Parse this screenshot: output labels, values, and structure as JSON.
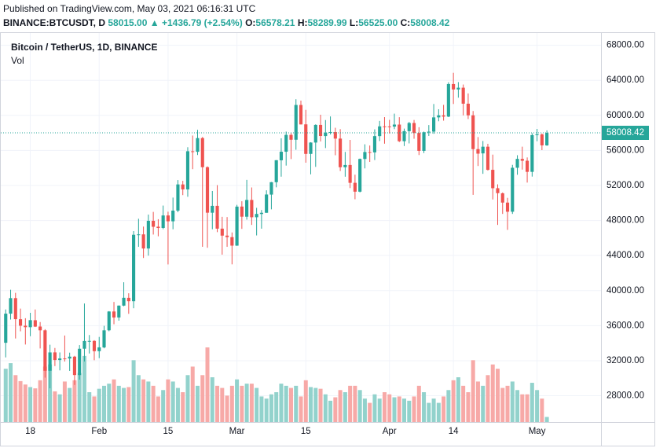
{
  "header": {
    "published": "Published on TradingView.com, May 03, 2021 06:16:31 UTC",
    "symbol": "BINANCE:BTCUSDT, D",
    "price": "58015.00",
    "change": "▲ +1436.79 (+2.54%)",
    "open_label": "O:",
    "open": "56578.21",
    "high_label": "H:",
    "high": "58289.99",
    "low_label": "L:",
    "low": "56525.00",
    "close_label": "C:",
    "close": "58008.42"
  },
  "chart_data": {
    "type": "candlestick",
    "title": "Bitcoin / TetherUS, 1D, BINANCE",
    "volume_label": "Vol",
    "up_color": "#26a69a",
    "down_color": "#ef5350",
    "volume_up_color": "#92d2cc",
    "volume_down_color": "#f7a9a7",
    "open": [
      34049,
      37371,
      39145,
      36737,
      35994,
      35824,
      36622,
      35901,
      35468,
      30852,
      32950,
      32078,
      32259,
      32251,
      32465,
      30362,
      33368,
      34246,
      34262,
      33092,
      33517,
      35472,
      37620,
      36936,
      38289,
      39181,
      38795,
      46374,
      46420,
      44807,
      47969,
      47298,
      47156,
      48580,
      47911,
      49133,
      52117,
      51552,
      55906,
      55841,
      57412,
      54088,
      48891,
      49677,
      47074,
      46277,
      46104,
      45134,
      49595,
      48436,
      50349,
      48374,
      48746,
      48882,
      50959,
      52376,
      54874,
      55851,
      57773,
      57222,
      61188,
      58976,
      55605,
      56900,
      58912,
      57641,
      58030,
      58100,
      57351,
      54083,
      54342,
      52304,
      51293,
      55026,
      55817,
      55777,
      57635,
      58746,
      58739,
      58720,
      58950,
      57052,
      58202,
      59130,
      57990,
      55953,
      58077,
      58142,
      59770,
      60007,
      59861,
      63576,
      62959,
      63159,
      61334,
      60006,
      56150,
      55663,
      56425,
      53787,
      51690,
      51110,
      50047,
      49004,
      54022,
      55033,
      54825,
      53555,
      57750,
      57828,
      56578.21
    ],
    "high": [
      37850,
      40100,
      39747,
      37950,
      36852,
      37469,
      37850,
      36415,
      35600,
      33826,
      33456,
      32944,
      34875,
      32921,
      32557,
      33783,
      38531,
      34933,
      34342,
      34717,
      35984,
      37662,
      38708,
      38310,
      40955,
      39700,
      46794,
      48200,
      47310,
      48678,
      48985,
      48150,
      49707,
      49010,
      50620,
      52618,
      52530,
      56368,
      57700,
      58352,
      57534,
      54183,
      51374,
      52041,
      48424,
      48395,
      46638,
      49790,
      50200,
      52640,
      51773,
      49448,
      49200,
      51450,
      52402,
      54895,
      57387,
      58150,
      58058,
      61844,
      61683,
      60633,
      56938,
      58980,
      60074,
      59468,
      59880,
      58589,
      58430,
      55830,
      57200,
      53230,
      55073,
      56700,
      56559,
      58405,
      59368,
      59800,
      59490,
      60200,
      59791,
      58492,
      59251,
      59475,
      58650,
      58153,
      58894,
      61300,
      60699,
      61200,
      63777,
      64854,
      63800,
      63520,
      62506,
      60499,
      57526,
      57076,
      56757,
      55521,
      52130,
      51200,
      50591,
      54356,
      55451,
      56428,
      55200,
      57963,
      58458,
      57941,
      58289.99
    ],
    "low": [
      32380,
      36701,
      34538,
      35357,
      33850,
      34800,
      35844,
      33400,
      30071,
      28850,
      31390,
      30900,
      31910,
      30837,
      29241,
      29842,
      31916,
      32825,
      32056,
      32296,
      33418,
      35362,
      36161,
      36570,
      38215,
      37351,
      37988,
      45000,
      43727,
      43994,
      46400,
      46202,
      47014,
      42989,
      47003,
      48947,
      50901,
      50710,
      53863,
      55477,
      45000,
      44892,
      47003,
      46674,
      44106,
      45000,
      43000,
      45115,
      47047,
      48100,
      47500,
      46300,
      47070,
      48882,
      49274,
      51789,
      53005,
      54270,
      55013,
      56078,
      58964,
      54600,
      53271,
      54123,
      57023,
      56270,
      57820,
      55450,
      53650,
      53000,
      51700,
      50427,
      51214,
      53950,
      54691,
      54901,
      57072,
      56769,
      57935,
      58428,
      56958,
      56500,
      56800,
      57333,
      55473,
      55700,
      57654,
      57900,
      59330,
      59400,
      59800,
      61301,
      62020,
      60000,
      59580,
      50931,
      54221,
      53329,
      53696,
      50400,
      47500,
      48753,
      46930,
      48753,
      53222,
      53813,
      52330,
      53013,
      57052,
      56035,
      56525
    ],
    "close": [
      37371,
      39144,
      36742,
      35994,
      35828,
      36631,
      35891,
      35468,
      30850,
      32945,
      32078,
      32259,
      32254,
      32467,
      30366,
      33364,
      34252,
      34262,
      33092,
      33526,
      35466,
      37618,
      36936,
      38290,
      39186,
      38795,
      46374,
      46420,
      44807,
      47969,
      47287,
      47153,
      48577,
      47911,
      49133,
      52119,
      51552,
      55907,
      55842,
      57408,
      54088,
      48892,
      49676,
      47073,
      46276,
      46106,
      45135,
      49587,
      48440,
      50349,
      48374,
      48751,
      48882,
      50971,
      52375,
      54884,
      55851,
      57773,
      57221,
      61188,
      58968,
      55605,
      56900,
      58912,
      57648,
      58030,
      58102,
      57351,
      54083,
      54340,
      52303,
      51293,
      55025,
      55818,
      55777,
      57635,
      58746,
      58740,
      58720,
      58950,
      57051,
      58202,
      59130,
      57991,
      55953,
      58077,
      58142,
      59769,
      60007,
      59860,
      63575,
      62959,
      63159,
      61334,
      60006,
      56150,
      55633,
      56425,
      53787,
      51690,
      51125,
      50047,
      49004,
      54021,
      55033,
      54824,
      53555,
      57750,
      57828,
      56578,
      58008.42
    ],
    "volume": [
      125000,
      138000,
      110000,
      96000,
      88000,
      82000,
      79000,
      98000,
      130000,
      135000,
      72000,
      65000,
      95000,
      80000,
      98000,
      115000,
      155000,
      70000,
      60000,
      78000,
      85000,
      90000,
      100000,
      85000,
      80000,
      82000,
      145000,
      110000,
      100000,
      95000,
      85000,
      60000,
      75000,
      100000,
      95000,
      80000,
      70000,
      110000,
      130000,
      85000,
      110000,
      175000,
      105000,
      85000,
      80000,
      62000,
      85000,
      100000,
      85000,
      90000,
      90000,
      80000,
      60000,
      55000,
      65000,
      70000,
      90000,
      85000,
      80000,
      85000,
      60000,
      98000,
      82000,
      80000,
      78000,
      65000,
      50000,
      58000,
      75000,
      70000,
      85000,
      85000,
      75000,
      55000,
      45000,
      65000,
      55000,
      70000,
      65000,
      58000,
      60000,
      55000,
      50000,
      60000,
      85000,
      70000,
      45000,
      55000,
      45000,
      60000,
      75000,
      98000,
      105000,
      85000,
      70000,
      145000,
      95000,
      85000,
      110000,
      135000,
      125000,
      80000,
      85000,
      95000,
      75000,
      65000,
      65000,
      92000,
      75000,
      55000,
      12000
    ],
    "xlim": [
      -1,
      121
    ],
    "xticks": [
      {
        "value": 5,
        "label": "18"
      },
      {
        "value": 19,
        "label": "Feb"
      },
      {
        "value": 33,
        "label": "15"
      },
      {
        "value": 47,
        "label": "Mar"
      },
      {
        "value": 61,
        "label": "15"
      },
      {
        "value": 78,
        "label": "Apr"
      },
      {
        "value": 91,
        "label": "14"
      },
      {
        "value": 108,
        "label": "May"
      }
    ],
    "ylim": [
      25000,
      69400
    ],
    "yticks": [
      {
        "value": 28000,
        "label": "28000.00"
      },
      {
        "value": 32000,
        "label": "32000.00"
      },
      {
        "value": 36000,
        "label": "36000.00"
      },
      {
        "value": 40000,
        "label": "40000.00"
      },
      {
        "value": 44000,
        "label": "44000.00"
      },
      {
        "value": 48000,
        "label": "48000.00"
      },
      {
        "value": 52000,
        "label": "52000.00"
      },
      {
        "value": 56000,
        "label": "56000.00"
      },
      {
        "value": 60000,
        "label": "60000.00"
      },
      {
        "value": 64000,
        "label": "64000.00"
      },
      {
        "value": 68000,
        "label": "68000.00"
      }
    ],
    "last_price": {
      "value": 58008.42,
      "label": "58008.42"
    },
    "grid": true
  }
}
